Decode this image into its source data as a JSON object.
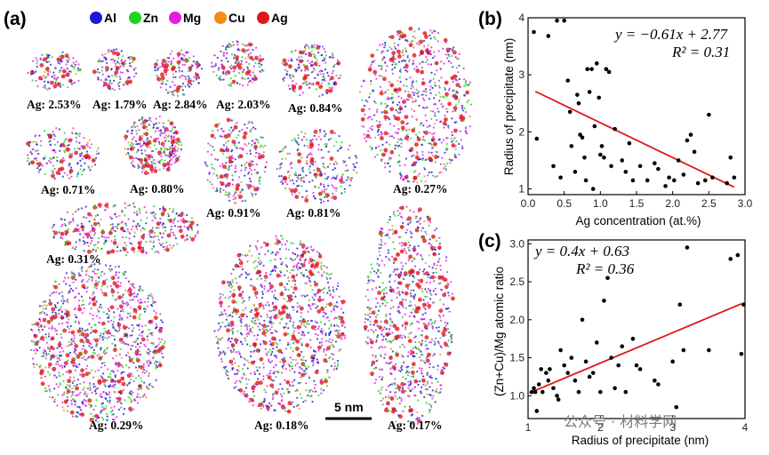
{
  "figure": {
    "panel_a": "(a)",
    "panel_b": "(b)",
    "panel_c": "(c)",
    "legend": [
      {
        "label": "Al",
        "color": "#1a1ad6"
      },
      {
        "label": "Zn",
        "color": "#22d322"
      },
      {
        "label": "Mg",
        "color": "#e01ee0"
      },
      {
        "label": "Cu",
        "color": "#f28c12"
      },
      {
        "label": "Ag",
        "color": "#e01818"
      }
    ],
    "precipitate_labels": [
      "Ag: 2.53%",
      "Ag: 1.79%",
      "Ag: 2.84%",
      "Ag: 2.03%",
      "Ag: 0.84%",
      "Ag: 0.71%",
      "Ag: 0.80%",
      "Ag: 0.91%",
      "Ag: 0.81%",
      "Ag: 0.27%",
      "Ag: 0.31%",
      "Ag: 0.29%",
      "Ag: 0.18%",
      "Ag: 0.17%"
    ],
    "scale_bar": "5 nm",
    "watermark": "公众号 · 材料学网"
  },
  "chart_data": [
    {
      "type": "scatter",
      "panel": "(b)",
      "xlabel": "Ag concentration (at.%)",
      "ylabel": "Radius of precipitate (nm)",
      "xlim": [
        0,
        3.0
      ],
      "ylim": [
        0.9,
        4.0
      ],
      "xticks": [
        "0.0",
        "0.5",
        "1.0",
        "1.5",
        "2.0",
        "2.5",
        "3.0"
      ],
      "yticks": [
        "1",
        "2",
        "3",
        "4"
      ],
      "equation": "y = −0.61x + 2.77",
      "r2": "R² = 0.31",
      "fit": {
        "slope": -0.61,
        "intercept": 2.77,
        "x_range": [
          0.1,
          2.85
        ],
        "color": "#e01818"
      },
      "points": [
        [
          0.08,
          3.75
        ],
        [
          0.12,
          1.88
        ],
        [
          0.28,
          3.68
        ],
        [
          0.35,
          1.4
        ],
        [
          0.4,
          3.95
        ],
        [
          0.45,
          1.2
        ],
        [
          0.5,
          3.95
        ],
        [
          0.55,
          2.9
        ],
        [
          0.58,
          2.35
        ],
        [
          0.6,
          1.75
        ],
        [
          0.65,
          1.3
        ],
        [
          0.68,
          2.65
        ],
        [
          0.7,
          2.5
        ],
        [
          0.72,
          1.95
        ],
        [
          0.75,
          1.9
        ],
        [
          0.78,
          1.55
        ],
        [
          0.8,
          1.15
        ],
        [
          0.82,
          3.1
        ],
        [
          0.85,
          2.7
        ],
        [
          0.88,
          3.1
        ],
        [
          0.9,
          1.0
        ],
        [
          0.92,
          2.1
        ],
        [
          0.95,
          3.2
        ],
        [
          0.98,
          2.6
        ],
        [
          1.0,
          1.6
        ],
        [
          1.02,
          1.75
        ],
        [
          1.05,
          1.55
        ],
        [
          1.08,
          3.1
        ],
        [
          1.12,
          3.05
        ],
        [
          1.15,
          1.4
        ],
        [
          1.2,
          2.05
        ],
        [
          1.3,
          1.5
        ],
        [
          1.35,
          1.3
        ],
        [
          1.4,
          1.8
        ],
        [
          1.45,
          1.15
        ],
        [
          1.55,
          1.4
        ],
        [
          1.65,
          1.15
        ],
        [
          1.75,
          1.45
        ],
        [
          1.8,
          1.35
        ],
        [
          1.9,
          1.05
        ],
        [
          1.95,
          1.2
        ],
        [
          2.02,
          1.15
        ],
        [
          2.08,
          1.5
        ],
        [
          2.15,
          1.25
        ],
        [
          2.2,
          1.85
        ],
        [
          2.25,
          1.95
        ],
        [
          2.3,
          1.65
        ],
        [
          2.35,
          1.1
        ],
        [
          2.45,
          1.15
        ],
        [
          2.5,
          2.3
        ],
        [
          2.55,
          1.2
        ],
        [
          2.75,
          1.1
        ],
        [
          2.8,
          1.55
        ],
        [
          2.85,
          1.2
        ]
      ]
    },
    {
      "type": "scatter",
      "panel": "(c)",
      "xlabel": "Radius of precipitate (nm)",
      "ylabel": "(Zn+Cu)/Mg atomic ratio",
      "xlim": [
        1,
        4
      ],
      "ylim": [
        0.7,
        3.05
      ],
      "xticks": [
        "1",
        "2",
        "3",
        "4"
      ],
      "yticks": [
        "1.0",
        "1.5",
        "2.0",
        "2.5",
        "3.0"
      ],
      "equation": "y = 0.4x + 0.63",
      "r2": "R² = 0.36",
      "fit": {
        "slope": 0.4,
        "intercept": 0.63,
        "x_range": [
          1.02,
          3.95
        ],
        "color": "#e01818"
      },
      "points": [
        [
          1.05,
          1.05
        ],
        [
          1.08,
          1.1
        ],
        [
          1.1,
          1.05
        ],
        [
          1.12,
          0.8
        ],
        [
          1.15,
          1.15
        ],
        [
          1.18,
          1.35
        ],
        [
          1.2,
          1.05
        ],
        [
          1.25,
          1.3
        ],
        [
          1.28,
          1.2
        ],
        [
          1.3,
          1.35
        ],
        [
          1.35,
          1.1
        ],
        [
          1.4,
          1.0
        ],
        [
          1.42,
          0.95
        ],
        [
          1.45,
          1.6
        ],
        [
          1.5,
          1.4
        ],
        [
          1.55,
          1.3
        ],
        [
          1.6,
          1.5
        ],
        [
          1.65,
          1.2
        ],
        [
          1.7,
          1.05
        ],
        [
          1.75,
          2.0
        ],
        [
          1.8,
          1.45
        ],
        [
          1.85,
          1.25
        ],
        [
          1.9,
          1.3
        ],
        [
          1.95,
          1.7
        ],
        [
          2.0,
          1.05
        ],
        [
          2.05,
          2.25
        ],
        [
          2.1,
          2.55
        ],
        [
          2.15,
          1.5
        ],
        [
          2.2,
          1.1
        ],
        [
          2.25,
          1.4
        ],
        [
          2.3,
          1.65
        ],
        [
          2.35,
          1.05
        ],
        [
          2.45,
          1.75
        ],
        [
          2.5,
          1.4
        ],
        [
          2.55,
          1.35
        ],
        [
          2.75,
          1.2
        ],
        [
          2.8,
          1.15
        ],
        [
          3.0,
          1.45
        ],
        [
          3.05,
          0.85
        ],
        [
          3.1,
          2.2
        ],
        [
          3.15,
          1.6
        ],
        [
          3.2,
          2.95
        ],
        [
          3.5,
          1.6
        ],
        [
          3.8,
          2.8
        ],
        [
          3.9,
          2.85
        ],
        [
          3.95,
          1.55
        ],
        [
          3.98,
          2.2
        ]
      ]
    }
  ]
}
